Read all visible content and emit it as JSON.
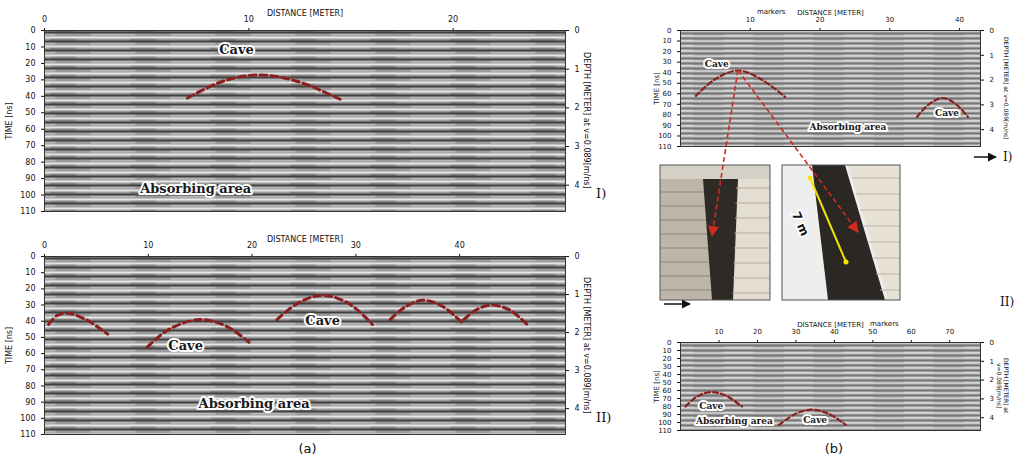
{
  "chart_data": [
    {
      "type": "line",
      "panel": "(a)",
      "part": "I)",
      "x_label": "DISTANCE [METER]",
      "y_label": "TIME [ns]",
      "y2_label": "DEPTH [METER] at v=0.089[m/ns]",
      "xlim": [
        0,
        25.5
      ],
      "xticks": [
        0,
        10,
        20
      ],
      "ylim": [
        0,
        110
      ],
      "yticks": [
        0,
        10,
        20,
        30,
        40,
        50,
        60,
        70,
        80,
        90,
        100,
        110
      ],
      "y2lim": [
        0,
        4.68
      ],
      "y2ticks": [
        0,
        1,
        2,
        3,
        4
      ],
      "color": "#8b1f1f",
      "line_style": "dashed",
      "curves": [
        {
          "x": [
            7,
            8.7,
            10.5,
            12.4,
            14.5
          ],
          "values": [
            41,
            31,
            27,
            31,
            42
          ]
        }
      ],
      "annotations": [
        {
          "text": "Cave",
          "x": 9.4,
          "y": 12
        },
        {
          "text": "Absorbing area",
          "x": 7.4,
          "y": 96
        }
      ]
    },
    {
      "type": "line",
      "panel": "(a)",
      "part": "II)",
      "x_label": "DISTANCE [METER]",
      "y_label": "TIME [ns]",
      "y2_label": "DEPTH [METER] at v=0.089[m/ns]",
      "xlim": [
        0,
        50.2
      ],
      "xticks": [
        0,
        10,
        20,
        30,
        40
      ],
      "ylim": [
        0,
        110
      ],
      "yticks": [
        0,
        10,
        20,
        30,
        40,
        50,
        60,
        70,
        80,
        90,
        100,
        110
      ],
      "y2lim": [
        0,
        4.68
      ],
      "y2ticks": [
        0,
        1,
        2,
        3,
        4
      ],
      "color": "#8b1f1f",
      "line_style": "dashed",
      "curves": [
        {
          "x": [
            0.4,
            1.2,
            2.2,
            4,
            6.1
          ],
          "values": [
            42,
            36.5,
            35,
            39,
            48
          ]
        },
        {
          "x": [
            9.9,
            12,
            14.9,
            17.5,
            19.7
          ],
          "values": [
            56,
            45,
            39,
            43,
            53
          ]
        },
        {
          "x": [
            22.4,
            24.5,
            26.8,
            29.3,
            31.6
          ],
          "values": [
            39,
            28.5,
            24,
            29,
            42
          ]
        },
        {
          "x": [
            33.3,
            34.8,
            36.4,
            38.4,
            40.4
          ],
          "values": [
            39,
            31,
            27,
            31,
            42
          ]
        },
        {
          "x": [
            40.4,
            41.6,
            43,
            44.8,
            46.5
          ],
          "values": [
            39,
            33,
            30,
            33,
            42
          ]
        }
      ],
      "annotations": [
        {
          "text": "Cave",
          "x": 13.6,
          "y": 55
        },
        {
          "text": "Cave",
          "x": 26.8,
          "y": 40
        },
        {
          "text": "Absorbing area",
          "x": 20.2,
          "y": 91
        }
      ]
    },
    {
      "type": "line",
      "panel": "(b)",
      "part": "I)",
      "x_label": "DISTANCE [METER]",
      "y_label": "TIME [ns]",
      "y2_label": "DEPTH [METER] at v=0.089[m/ns]",
      "xlim": [
        0,
        43
      ],
      "xticks": [
        10,
        20,
        30,
        40
      ],
      "ylim": [
        0,
        110
      ],
      "yticks": [
        0,
        10,
        20,
        30,
        40,
        50,
        60,
        70,
        80,
        90,
        100,
        110
      ],
      "y2lim": [
        0,
        4.68
      ],
      "y2ticks": [
        0,
        1,
        2,
        3,
        4
      ],
      "color": "#8b1f1f",
      "line_style": "dashed",
      "curves": [
        {
          "x": [
            2.2,
            5,
            8.3,
            11.5,
            15
          ],
          "values": [
            62,
            46,
            38,
            46,
            63
          ]
        },
        {
          "x": [
            33.9,
            35.6,
            37.6,
            39.5,
            41.2
          ],
          "values": [
            82,
            70,
            64,
            70,
            82
          ]
        }
      ],
      "annotations": [
        {
          "text": "Cave",
          "x": 5.2,
          "y": 32
        },
        {
          "text": "Cave",
          "x": 38.2,
          "y": 78
        },
        {
          "text": "Absorbing area",
          "x": 24,
          "y": 92
        }
      ],
      "markers": {
        "label": "markers",
        "x": 13
      },
      "photo_label": "7 m"
    },
    {
      "type": "line",
      "panel": "(b)",
      "part": "II)",
      "x_label": "DISTANCE [METER]",
      "y_label": "TIME [ns]",
      "y2_label": "DEPTH [METER] at v=0.089[m/ns]",
      "xlim": [
        0,
        78
      ],
      "xticks": [
        10,
        20,
        30,
        40,
        50,
        60,
        70
      ],
      "ylim": [
        0,
        110
      ],
      "yticks": [
        0,
        10,
        20,
        30,
        40,
        50,
        60,
        70,
        80,
        90,
        100,
        110
      ],
      "y2lim": [
        0,
        4.68
      ],
      "y2ticks": [
        0,
        1,
        2,
        3,
        4
      ],
      "color": "#8b1f1f",
      "line_style": "dashed",
      "curves": [
        {
          "x": [
            1.3,
            4.5,
            8.3,
            12,
            16
          ],
          "values": [
            80,
            67,
            62,
            67,
            80
          ]
        },
        {
          "x": [
            25.6,
            30,
            34,
            38.5,
            43
          ],
          "values": [
            103,
            89,
            84,
            89,
            103
          ]
        }
      ],
      "annotations": [
        {
          "text": "Cave",
          "x": 8,
          "y": 80
        },
        {
          "text": "Cave",
          "x": 35,
          "y": 97
        },
        {
          "text": "Absorbing area",
          "x": 14,
          "y": 98
        }
      ],
      "markers": {
        "label": "markers",
        "x": 53
      }
    }
  ]
}
